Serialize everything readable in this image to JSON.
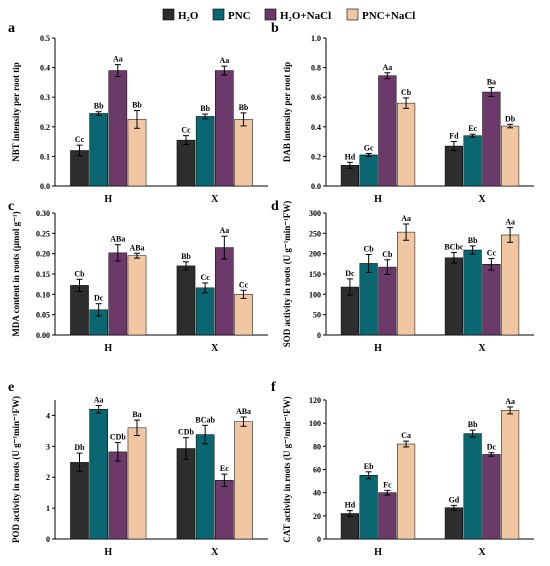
{
  "legend": [
    {
      "label": "H₂O",
      "color": "#2d2d2d"
    },
    {
      "label": "PNC",
      "color": "#0a6670"
    },
    {
      "label": "H₂O+NaCl",
      "color": "#6b3a6b"
    },
    {
      "label": "PNC+NaCl",
      "color": "#f1c6a3"
    }
  ],
  "chart_data": [
    {
      "panel": "a",
      "type": "bar",
      "ylabel": "NBT intensity per root tip",
      "categories": [
        "H",
        "X"
      ],
      "ylim": [
        0,
        0.5
      ],
      "yticks": [
        "0.0",
        "0.1",
        "0.2",
        "0.3",
        "0.4",
        "0.5"
      ],
      "series": [
        {
          "name": "H₂O",
          "values": [
            0.12,
            0.155
          ],
          "errors": [
            0.018,
            0.015
          ],
          "labels": [
            "Cc",
            "Cc"
          ]
        },
        {
          "name": "PNC",
          "values": [
            0.245,
            0.235
          ],
          "errors": [
            0.006,
            0.008
          ],
          "labels": [
            "Bb",
            "Bb"
          ]
        },
        {
          "name": "H₂O+NaCl",
          "values": [
            0.39,
            0.39
          ],
          "errors": [
            0.02,
            0.015
          ],
          "labels": [
            "Aa",
            "Aa"
          ]
        },
        {
          "name": "PNC+NaCl",
          "values": [
            0.225,
            0.225
          ],
          "errors": [
            0.03,
            0.022
          ],
          "labels": [
            "Bb",
            "Bb"
          ]
        }
      ]
    },
    {
      "panel": "b",
      "type": "bar",
      "ylabel": "DAB intensity per root tip",
      "categories": [
        "H",
        "X"
      ],
      "ylim": [
        0,
        1.0
      ],
      "yticks": [
        "0.0",
        "0.2",
        "0.4",
        "0.6",
        "0.8",
        "1.0"
      ],
      "series": [
        {
          "name": "H₂O",
          "values": [
            0.14,
            0.27
          ],
          "errors": [
            0.02,
            0.03
          ],
          "labels": [
            "Hd",
            "Fd"
          ]
        },
        {
          "name": "PNC",
          "values": [
            0.21,
            0.34
          ],
          "errors": [
            0.01,
            0.01
          ],
          "labels": [
            "Gc",
            "Ec"
          ]
        },
        {
          "name": "H₂O+NaCl",
          "values": [
            0.745,
            0.635
          ],
          "errors": [
            0.02,
            0.03
          ],
          "labels": [
            "Aa",
            "Ba"
          ]
        },
        {
          "name": "PNC+NaCl",
          "values": [
            0.56,
            0.405
          ],
          "errors": [
            0.035,
            0.012
          ],
          "labels": [
            "Cb",
            "Db"
          ]
        }
      ]
    },
    {
      "panel": "c",
      "type": "bar",
      "ylabel": "MDA content in roots (µmol g⁻¹)",
      "categories": [
        "H",
        "X"
      ],
      "ylim": [
        0,
        0.3
      ],
      "yticks": [
        "0.00",
        "0.05",
        "0.10",
        "0.15",
        "0.20",
        "0.25",
        "0.30"
      ],
      "series": [
        {
          "name": "H₂O",
          "values": [
            0.122,
            0.17
          ],
          "errors": [
            0.015,
            0.01
          ],
          "labels": [
            "Cb",
            "Bb"
          ]
        },
        {
          "name": "PNC",
          "values": [
            0.062,
            0.116
          ],
          "errors": [
            0.015,
            0.012
          ],
          "labels": [
            "Dc",
            "Cc"
          ]
        },
        {
          "name": "H₂O+NaCl",
          "values": [
            0.202,
            0.215
          ],
          "errors": [
            0.02,
            0.028
          ],
          "labels": [
            "ABa",
            "Aa"
          ]
        },
        {
          "name": "PNC+NaCl",
          "values": [
            0.195,
            0.1
          ],
          "errors": [
            0.006,
            0.01
          ],
          "labels": [
            "ABa",
            "Cc"
          ]
        }
      ]
    },
    {
      "panel": "d",
      "type": "bar",
      "ylabel": "SOD activity in roots (U g⁻¹min⁻¹FW)",
      "categories": [
        "H",
        "X"
      ],
      "ylim": [
        0,
        300
      ],
      "yticks": [
        "0",
        "50",
        "100",
        "150",
        "200",
        "250",
        "300"
      ],
      "series": [
        {
          "name": "H₂O",
          "values": [
            118,
            190
          ],
          "errors": [
            20,
            13
          ],
          "labels": [
            "Dc",
            "BCbc"
          ]
        },
        {
          "name": "PNC",
          "values": [
            176,
            209
          ],
          "errors": [
            22,
            10
          ],
          "labels": [
            "Cb",
            "Bb"
          ]
        },
        {
          "name": "H₂O+NaCl",
          "values": [
            167,
            174
          ],
          "errors": [
            18,
            14
          ],
          "labels": [
            "Cb",
            "Cc"
          ]
        },
        {
          "name": "PNC+NaCl",
          "values": [
            253,
            246
          ],
          "errors": [
            20,
            18
          ],
          "labels": [
            "Aa",
            "Aa"
          ]
        }
      ]
    },
    {
      "panel": "e",
      "type": "bar",
      "ylabel": "POD activity in roots (U g⁻¹min⁻¹FW)",
      "categories": [
        "H",
        "X"
      ],
      "ylim": [
        0,
        4.5
      ],
      "yticks": [
        "0",
        "1",
        "2",
        "3",
        "4"
      ],
      "series": [
        {
          "name": "H₂O",
          "values": [
            2.48,
            2.93
          ],
          "errors": [
            0.3,
            0.35
          ],
          "labels": [
            "Db",
            "CDb"
          ]
        },
        {
          "name": "PNC",
          "values": [
            4.2,
            3.38
          ],
          "errors": [
            0.12,
            0.3
          ],
          "labels": [
            "Aa",
            "BCab"
          ]
        },
        {
          "name": "H₂O+NaCl",
          "values": [
            2.82,
            1.9
          ],
          "errors": [
            0.3,
            0.2
          ],
          "labels": [
            "CDb",
            "Ec"
          ]
        },
        {
          "name": "PNC+NaCl",
          "values": [
            3.6,
            3.8
          ],
          "errors": [
            0.25,
            0.15
          ],
          "labels": [
            "Ba",
            "ABa"
          ]
        }
      ]
    },
    {
      "panel": "f",
      "type": "bar",
      "ylabel": "CAT activity in roots (U g⁻¹min⁻¹FW)",
      "categories": [
        "H",
        "X"
      ],
      "ylim": [
        0,
        120
      ],
      "yticks": [
        "0",
        "20",
        "40",
        "60",
        "80",
        "100",
        "120"
      ],
      "series": [
        {
          "name": "H₂O",
          "values": [
            22,
            27
          ],
          "errors": [
            2.5,
            2
          ],
          "labels": [
            "Hd",
            "Gd"
          ]
        },
        {
          "name": "PNC",
          "values": [
            55,
            91
          ],
          "errors": [
            3,
            3
          ],
          "labels": [
            "Eb",
            "Bb"
          ]
        },
        {
          "name": "H₂O+NaCl",
          "values": [
            40,
            73
          ],
          "errors": [
            2,
            1.5
          ],
          "labels": [
            "Fc",
            "Dc"
          ]
        },
        {
          "name": "PNC+NaCl",
          "values": [
            82,
            111
          ],
          "errors": [
            2.5,
            3
          ],
          "labels": [
            "Ca",
            "Aa"
          ]
        }
      ]
    }
  ]
}
